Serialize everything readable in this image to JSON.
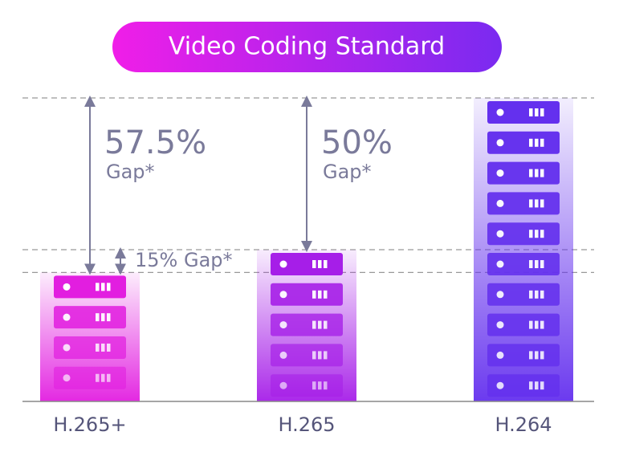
{
  "chart_data": {
    "type": "bar",
    "title": "Video Coding Standard",
    "categories": [
      "H.265+",
      "H.265",
      "H.264"
    ],
    "values": [
      42.5,
      50,
      100
    ],
    "colors": [
      "#e21ee0",
      "#a61ee8",
      "#6430ee"
    ],
    "ylim": [
      0,
      100
    ],
    "annotations": [
      {
        "headline": "57.5%",
        "caption": "Gap*"
      },
      {
        "headline": "50%",
        "caption": "Gap*"
      },
      {
        "text": "15% Gap*"
      }
    ]
  }
}
